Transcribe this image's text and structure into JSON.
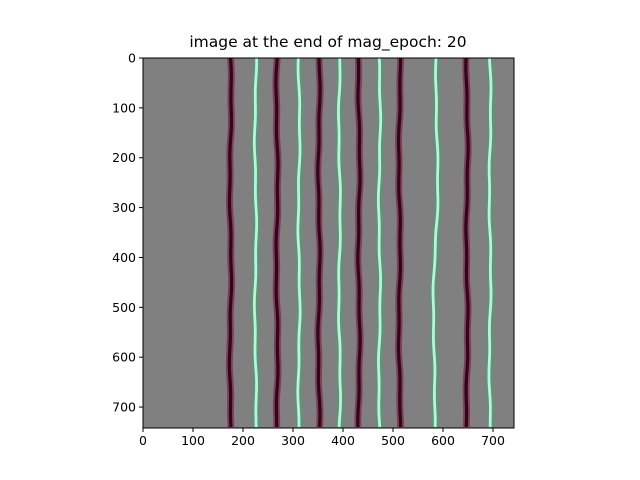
{
  "figure": {
    "title": "image at the end of mag_epoch: 20"
  },
  "chart_data": {
    "type": "heatmap",
    "title": "image at the end of mag_epoch: 20",
    "xlabel": "",
    "ylabel": "",
    "xlim": [
      0,
      742
    ],
    "ylim": [
      742,
      0
    ],
    "x_ticks": [
      0,
      100,
      200,
      300,
      400,
      500,
      600,
      700
    ],
    "y_ticks": [
      0,
      100,
      200,
      300,
      400,
      500,
      600,
      700
    ],
    "background_color": "#808080",
    "grid": false,
    "stripes": [
      {
        "x": 175,
        "kind": "dark",
        "color": "#2a0a1a"
      },
      {
        "x": 225,
        "kind": "light",
        "color": "#b8f5d0"
      },
      {
        "x": 268,
        "kind": "dark",
        "color": "#2a0a1a"
      },
      {
        "x": 312,
        "kind": "light",
        "color": "#b8f5d0"
      },
      {
        "x": 352,
        "kind": "dark",
        "color": "#2a0a1a"
      },
      {
        "x": 393,
        "kind": "light",
        "color": "#b8f5d0"
      },
      {
        "x": 432,
        "kind": "dark",
        "color": "#2a0a1a"
      },
      {
        "x": 473,
        "kind": "light",
        "color": "#b8f5d0"
      },
      {
        "x": 513,
        "kind": "dark",
        "color": "#2a0a1a"
      },
      {
        "x": 585,
        "kind": "light",
        "color": "#b8f5d0"
      },
      {
        "x": 648,
        "kind": "dark",
        "color": "#2a0a1a"
      },
      {
        "x": 694,
        "kind": "light",
        "color": "#b8f5d0"
      }
    ]
  }
}
